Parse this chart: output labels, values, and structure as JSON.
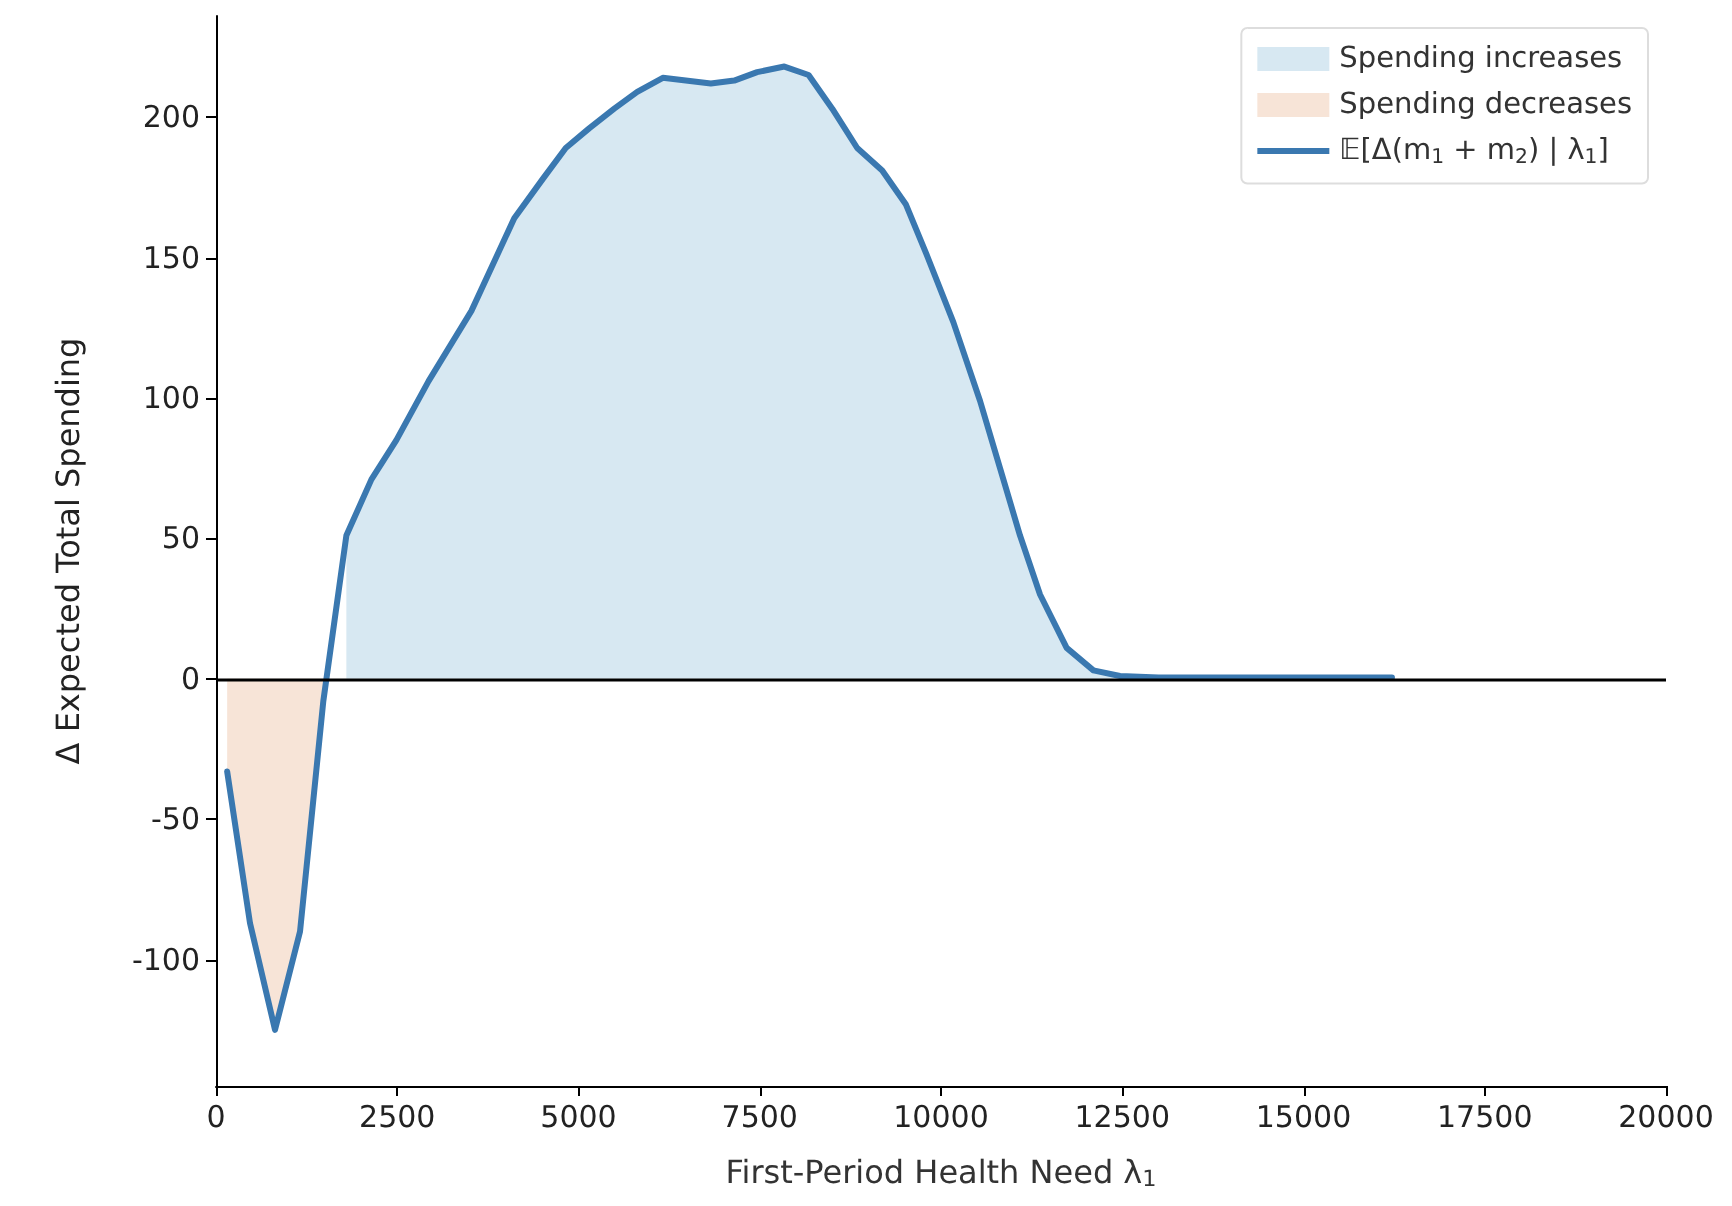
{
  "chart_data": {
    "type": "line",
    "xlabel": "First-Period Health Need λ$_{1}$",
    "ylabel": "Δ Expected Total Spending",
    "xlim": [
      0,
      20000
    ],
    "xticks": [
      0,
      2500,
      5000,
      7500,
      10000,
      12500,
      15000,
      17500,
      20000
    ],
    "ylim": [
      -145,
      236
    ],
    "yticks": [
      -100,
      -50,
      0,
      50,
      100,
      150,
      200
    ],
    "grid": false,
    "legend": "top right",
    "marker": "none",
    "line_style": "solid",
    "ref_lines": [
      {
        "axis": "y",
        "value": 0,
        "color": "#000000"
      }
    ],
    "series": [
      {
        "name": "Spending increases",
        "type": "area",
        "color": "#d7e8f2",
        "x": [
          1798,
          2144,
          2488,
          2932,
          3523,
          4114,
          4508,
          4824,
          5147,
          5493,
          5810,
          6163,
          6480,
          6825,
          7148,
          7464,
          7839,
          8174,
          8500,
          8844,
          9189,
          9514,
          9802,
          10170,
          10538,
          10814,
          11090,
          11366,
          11733,
          12102,
          12469,
          13000,
          14000,
          15000,
          16220
        ],
        "values": [
          51,
          71,
          85,
          106,
          131,
          164,
          178,
          189,
          196,
          203,
          209,
          214,
          213,
          212,
          213,
          216,
          218,
          215,
          203,
          189,
          181,
          169,
          151,
          127,
          99,
          75,
          51,
          30,
          11,
          3,
          1,
          0.5,
          0.5,
          0.5,
          0.5
        ]
      },
      {
        "name": "Spending decreases",
        "type": "area",
        "color": "#f7e4d7",
        "x": [
          154,
          469,
          814,
          1159,
          1480
        ],
        "values": [
          -33,
          -87,
          -125,
          -90,
          -8
        ]
      },
      {
        "name": "𝔼[Δ(m$_{1}$ + m$_{2}$) | λ$_{1}$]",
        "color": "#3a78b0",
        "x": [
          154,
          469,
          814,
          1159,
          1480,
          1798,
          2144,
          2488,
          2932,
          3523,
          4114,
          4508,
          4824,
          5147,
          5493,
          5810,
          6163,
          6480,
          6825,
          7148,
          7464,
          7839,
          8174,
          8500,
          8844,
          9189,
          9514,
          9802,
          10170,
          10538,
          10814,
          11090,
          11366,
          11733,
          12102,
          12469,
          13000,
          14000,
          15000,
          16220
        ],
        "values": [
          -33,
          -87,
          -125,
          -90,
          -8,
          51,
          71,
          85,
          106,
          131,
          164,
          178,
          189,
          196,
          203,
          209,
          214,
          213,
          212,
          213,
          216,
          218,
          215,
          203,
          189,
          181,
          169,
          151,
          127,
          99,
          75,
          51,
          30,
          11,
          3,
          1,
          0.5,
          0.5,
          0.5,
          0.5
        ]
      }
    ]
  }
}
